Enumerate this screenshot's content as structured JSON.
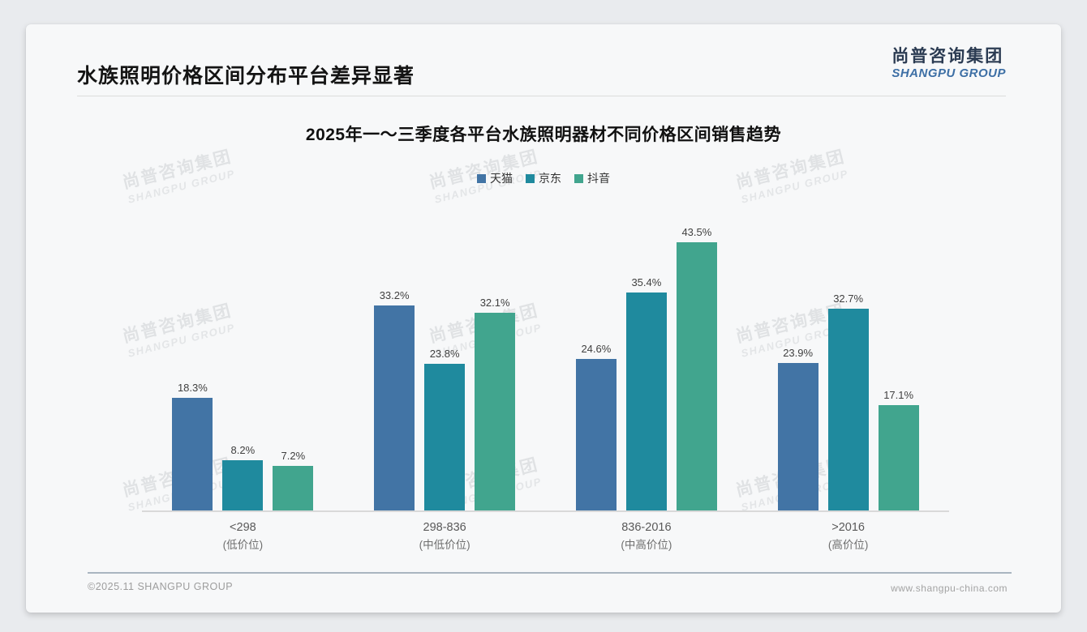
{
  "page": {
    "title": "水族照明价格区间分布平台差异显著",
    "logo": {
      "cn": "尚普咨询集团",
      "en": "SHANGPU GROUP"
    },
    "watermark": {
      "cn": "尚普咨询集团",
      "en": "SHANGPU GROUP"
    },
    "footer": {
      "left": "©2025.11 SHANGPU GROUP",
      "right": "www.shangpu-china.com"
    }
  },
  "chart_data": {
    "type": "bar",
    "title": "2025年一～三季度各平台水族照明器材不同价格区间销售趋势",
    "categories": [
      "<298",
      "298-836",
      "836-2016",
      ">2016"
    ],
    "category_sublabels": [
      "(低价位)",
      "(中低价位)",
      "(中高价位)",
      "(高价位)"
    ],
    "series": [
      {
        "name": "天猫",
        "color": "#4274a5",
        "values": [
          18.3,
          33.2,
          24.6,
          23.9
        ]
      },
      {
        "name": "京东",
        "color": "#1f8a9e",
        "values": [
          8.2,
          23.8,
          35.4,
          32.7
        ]
      },
      {
        "name": "抖音",
        "color": "#41a58e",
        "values": [
          7.2,
          32.1,
          43.5,
          17.1
        ]
      }
    ],
    "value_suffix": "%",
    "ylim": [
      0,
      48
    ],
    "xlabel": "",
    "ylabel": "",
    "grid": false,
    "legend_position": "top"
  }
}
